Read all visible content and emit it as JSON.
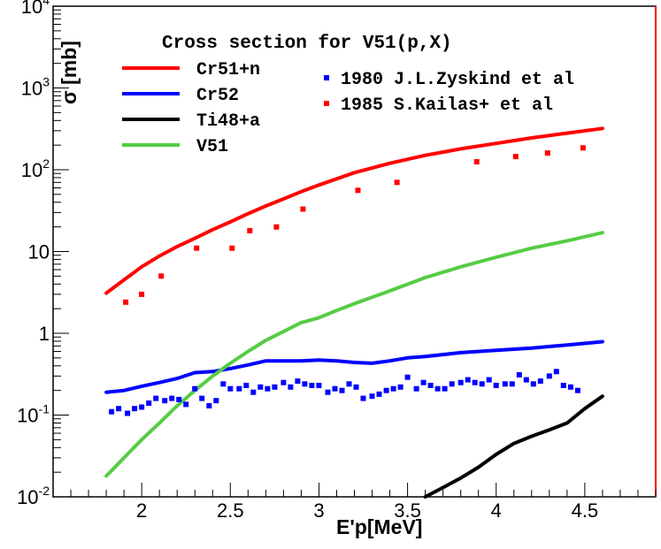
{
  "chart_data": {
    "type": "line",
    "title": "Cross section for V51(p,X)",
    "xlabel": "E'p[MeV]",
    "ylabel": "σ [mb]",
    "xlim": [
      1.5,
      4.9
    ],
    "ylim": [
      0.01,
      10000
    ],
    "yscale": "log",
    "x_ticks": [
      {
        "value": 2,
        "label": "2"
      },
      {
        "value": 2.5,
        "label": "2.5"
      },
      {
        "value": 3,
        "label": "3"
      },
      {
        "value": 3.5,
        "label": "3.5"
      },
      {
        "value": 4,
        "label": "4"
      },
      {
        "value": 4.5,
        "label": "4.5"
      }
    ],
    "y_ticks": [
      {
        "value": 0.01,
        "base": "10",
        "exp": "-2"
      },
      {
        "value": 0.1,
        "base": "10",
        "exp": "-1"
      },
      {
        "value": 1,
        "base": "1",
        "exp": ""
      },
      {
        "value": 10,
        "base": "10",
        "exp": ""
      },
      {
        "value": 100,
        "base": "10",
        "exp": "2"
      },
      {
        "value": 1000,
        "base": "10",
        "exp": "3"
      },
      {
        "value": 10000,
        "base": "10",
        "exp": "4"
      }
    ],
    "series": [
      {
        "name": "Cr51+n",
        "color": "#ff0000",
        "kind": "line",
        "x": [
          1.8,
          1.9,
          2.0,
          2.1,
          2.2,
          2.3,
          2.4,
          2.5,
          2.6,
          2.7,
          2.8,
          2.9,
          3.0,
          3.2,
          3.4,
          3.6,
          3.8,
          4.0,
          4.2,
          4.4,
          4.6
        ],
        "y": [
          3.1,
          4.5,
          6.5,
          8.8,
          11.5,
          14.5,
          18.5,
          23,
          29,
          36,
          44,
          54,
          65,
          92,
          120,
          150,
          180,
          210,
          245,
          280,
          320
        ]
      },
      {
        "name": "Cr52",
        "color": "#0000ff",
        "kind": "line",
        "x": [
          1.8,
          1.9,
          2.0,
          2.1,
          2.2,
          2.3,
          2.4,
          2.5,
          2.6,
          2.7,
          2.8,
          2.9,
          3.0,
          3.1,
          3.2,
          3.3,
          3.4,
          3.5,
          3.6,
          3.8,
          4.0,
          4.2,
          4.4,
          4.6
        ],
        "y": [
          0.19,
          0.2,
          0.225,
          0.25,
          0.28,
          0.33,
          0.34,
          0.37,
          0.41,
          0.46,
          0.46,
          0.46,
          0.47,
          0.46,
          0.44,
          0.43,
          0.46,
          0.5,
          0.52,
          0.58,
          0.62,
          0.66,
          0.72,
          0.79
        ]
      },
      {
        "name": "Ti48+a",
        "color": "#000000",
        "kind": "line",
        "x": [
          3.6,
          3.7,
          3.8,
          3.9,
          4.0,
          4.1,
          4.2,
          4.3,
          4.4,
          4.5,
          4.6
        ],
        "y": [
          0.01,
          0.013,
          0.017,
          0.023,
          0.033,
          0.045,
          0.055,
          0.066,
          0.08,
          0.12,
          0.17
        ]
      },
      {
        "name": "V51",
        "color": "#55cc44",
        "kind": "line",
        "x": [
          1.8,
          1.9,
          2.0,
          2.1,
          2.2,
          2.3,
          2.4,
          2.5,
          2.6,
          2.7,
          2.8,
          2.9,
          3.0,
          3.1,
          3.2,
          3.4,
          3.6,
          3.8,
          4.0,
          4.2,
          4.4,
          4.6
        ],
        "y": [
          0.018,
          0.03,
          0.05,
          0.08,
          0.13,
          0.2,
          0.3,
          0.43,
          0.6,
          0.82,
          1.05,
          1.35,
          1.55,
          1.9,
          2.3,
          3.3,
          4.8,
          6.5,
          8.5,
          11,
          13.5,
          17
        ]
      },
      {
        "name": "1980 J.L.Zyskind et al",
        "color": "#0000ff",
        "kind": "points",
        "x": [
          1.83,
          1.87,
          1.92,
          1.96,
          2.0,
          2.04,
          2.08,
          2.13,
          2.17,
          2.21,
          2.25,
          2.3,
          2.34,
          2.38,
          2.42,
          2.46,
          2.5,
          2.55,
          2.59,
          2.63,
          2.67,
          2.71,
          2.75,
          2.8,
          2.84,
          2.88,
          2.92,
          2.96,
          3.0,
          3.05,
          3.09,
          3.13,
          3.17,
          3.21,
          3.25,
          3.3,
          3.34,
          3.38,
          3.42,
          3.46,
          3.5,
          3.55,
          3.59,
          3.63,
          3.67,
          3.71,
          3.75,
          3.8,
          3.84,
          3.88,
          3.92,
          3.96,
          4.0,
          4.05,
          4.09,
          4.13,
          4.17,
          4.21,
          4.25,
          4.3,
          4.34,
          4.38,
          4.42,
          4.46
        ],
        "y": [
          0.11,
          0.12,
          0.105,
          0.12,
          0.125,
          0.14,
          0.16,
          0.15,
          0.16,
          0.155,
          0.135,
          0.21,
          0.16,
          0.13,
          0.15,
          0.24,
          0.21,
          0.21,
          0.23,
          0.19,
          0.22,
          0.21,
          0.22,
          0.25,
          0.22,
          0.26,
          0.24,
          0.23,
          0.23,
          0.19,
          0.21,
          0.2,
          0.24,
          0.22,
          0.16,
          0.17,
          0.18,
          0.2,
          0.21,
          0.22,
          0.29,
          0.21,
          0.25,
          0.23,
          0.21,
          0.21,
          0.24,
          0.25,
          0.27,
          0.25,
          0.24,
          0.27,
          0.23,
          0.24,
          0.24,
          0.31,
          0.27,
          0.24,
          0.26,
          0.3,
          0.34,
          0.23,
          0.22,
          0.2
        ]
      },
      {
        "name": "1985 S.Kailas+ et al",
        "color": "#ff0000",
        "kind": "points",
        "x": [
          1.91,
          2.0,
          2.11,
          2.31,
          2.51,
          2.61,
          2.76,
          2.91,
          3.22,
          3.44,
          3.89,
          4.11,
          4.29,
          4.49
        ],
        "y": [
          2.4,
          3.0,
          5.0,
          11,
          11,
          18,
          20,
          33,
          56,
          70,
          125,
          145,
          160,
          185
        ]
      }
    ]
  }
}
